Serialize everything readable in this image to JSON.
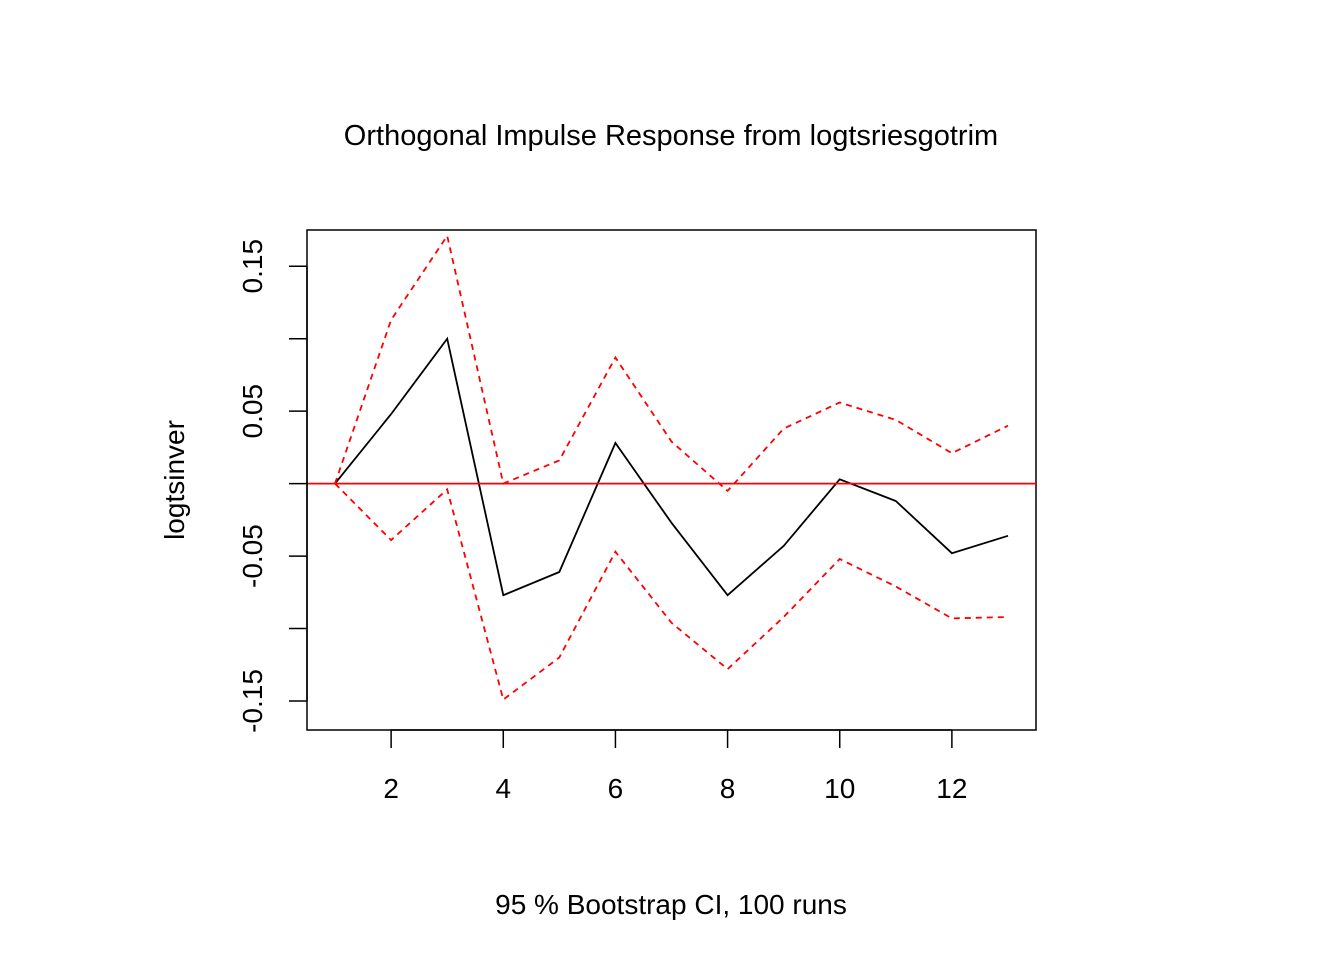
{
  "chart_data": {
    "type": "line",
    "title": "Orthogonal Impulse Response from logtsriesgotrim",
    "xlabel": "95 % Bootstrap CI,  100 runs",
    "ylabel": "logtsinver",
    "xlim": [
      0.5,
      13.5
    ],
    "ylim": [
      -0.17,
      0.175
    ],
    "x_ticks": [
      2,
      4,
      6,
      8,
      10,
      12
    ],
    "x_tick_labels": [
      "2",
      "4",
      "6",
      "8",
      "10",
      "12"
    ],
    "y_ticks": [
      -0.15,
      -0.1,
      -0.05,
      0,
      0.05,
      0.1,
      0.15
    ],
    "y_tick_labels": [
      "-0.15",
      "",
      "-0.05",
      "",
      "0.05",
      "",
      "0.15"
    ],
    "x": [
      1,
      2,
      3,
      4,
      5,
      6,
      7,
      8,
      9,
      10,
      11,
      12,
      13
    ],
    "series": [
      {
        "role": "response",
        "color": "#000000",
        "style": "solid",
        "values": [
          0.0,
          0.048,
          0.1,
          -0.077,
          -0.061,
          0.028,
          -0.027,
          -0.077,
          -0.043,
          0.003,
          -0.012,
          -0.048,
          -0.036
        ]
      },
      {
        "role": "upper",
        "color": "#ff0000",
        "style": "dashed",
        "values": [
          0.0,
          0.113,
          0.171,
          0.0,
          0.016,
          0.087,
          0.029,
          -0.005,
          0.038,
          0.056,
          0.044,
          0.021,
          0.04
        ]
      },
      {
        "role": "lower",
        "color": "#ff0000",
        "style": "dashed",
        "values": [
          0.0,
          -0.039,
          -0.004,
          -0.149,
          -0.12,
          -0.047,
          -0.096,
          -0.128,
          -0.092,
          -0.052,
          -0.071,
          -0.093,
          -0.092
        ]
      }
    ],
    "reference_line": {
      "y": 0,
      "color": "#ff0000",
      "style": "solid"
    },
    "grid": false,
    "legend": "none"
  }
}
